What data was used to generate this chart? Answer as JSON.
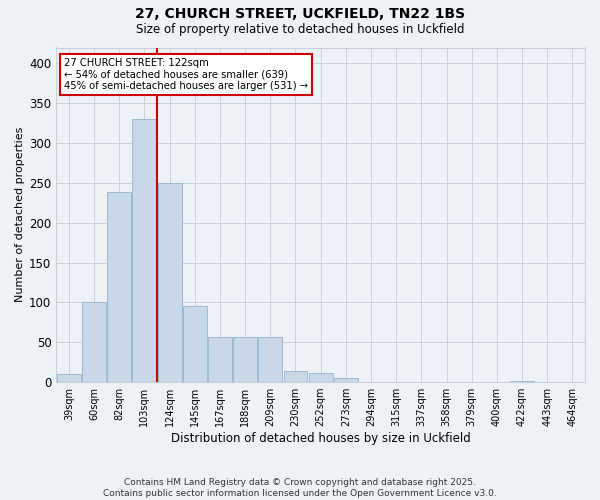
{
  "title1": "27, CHURCH STREET, UCKFIELD, TN22 1BS",
  "title2": "Size of property relative to detached houses in Uckfield",
  "xlabel": "Distribution of detached houses by size in Uckfield",
  "ylabel": "Number of detached properties",
  "categories": [
    "39sqm",
    "60sqm",
    "82sqm",
    "103sqm",
    "124sqm",
    "145sqm",
    "167sqm",
    "188sqm",
    "209sqm",
    "230sqm",
    "252sqm",
    "273sqm",
    "294sqm",
    "315sqm",
    "337sqm",
    "358sqm",
    "379sqm",
    "400sqm",
    "422sqm",
    "443sqm",
    "464sqm"
  ],
  "values": [
    10,
    101,
    238,
    330,
    250,
    96,
    57,
    57,
    57,
    14,
    12,
    5,
    0,
    0,
    0,
    0,
    0,
    0,
    1,
    0,
    0
  ],
  "bar_color": "#c8d8e8",
  "bar_edge_color": "#a0b8d0",
  "vline_color": "#cc0000",
  "annotation_line1": "27 CHURCH STREET: 122sqm",
  "annotation_line2": "← 54% of detached houses are smaller (639)",
  "annotation_line3": "45% of semi-detached houses are larger (531) →",
  "annotation_box_color": "#ffffff",
  "annotation_box_edge": "#cc0000",
  "ylim": [
    0,
    420
  ],
  "yticks": [
    0,
    50,
    100,
    150,
    200,
    250,
    300,
    350,
    400
  ],
  "footer": "Contains HM Land Registry data © Crown copyright and database right 2025.\nContains public sector information licensed under the Open Government Licence v3.0.",
  "bg_color": "#eef2f7",
  "grid_color": "#c8d0dc"
}
